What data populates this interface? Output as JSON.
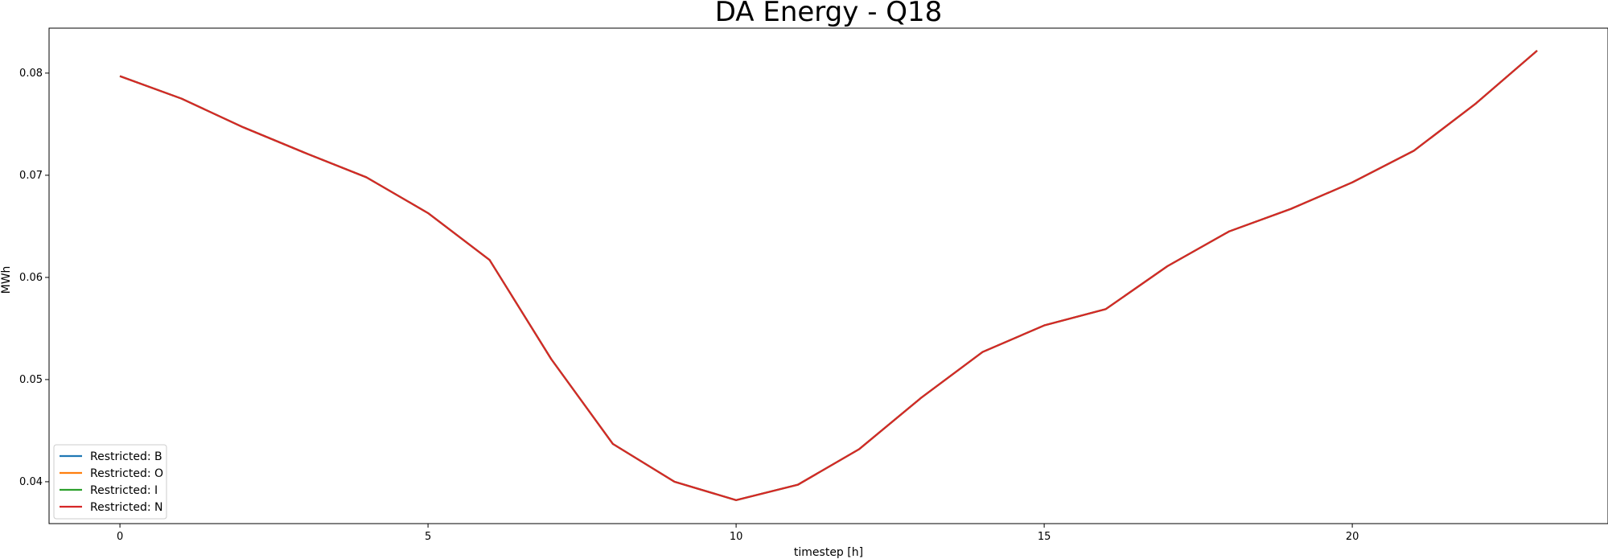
{
  "chart_data": {
    "type": "line",
    "title": "DA Energy - Q18",
    "xlabel": "timestep [h]",
    "ylabel": "MWh",
    "xlim": [
      -1.15,
      24.15
    ],
    "ylim": [
      0.0359,
      0.0844
    ],
    "x_ticks": [
      0,
      5,
      10,
      15,
      20
    ],
    "y_ticks": [
      0.04,
      0.05,
      0.06,
      0.07,
      0.08
    ],
    "y_tick_labels": [
      "0.04",
      "0.05",
      "0.06",
      "0.07",
      "0.08"
    ],
    "grid": false,
    "legend_position": "lower left",
    "x": [
      0,
      1,
      2,
      3,
      4,
      5,
      6,
      7,
      8,
      9,
      10,
      11,
      12,
      13,
      14,
      15,
      16,
      17,
      18,
      19,
      20,
      21,
      22,
      23
    ],
    "series": [
      {
        "name": "Restricted: B",
        "color": "#1f77b4",
        "values": [
          0.0797,
          0.0775,
          0.0747,
          0.0722,
          0.0698,
          0.0663,
          0.0617,
          0.052,
          0.0437,
          0.04,
          0.0382,
          0.0397,
          0.0432,
          0.0482,
          0.0527,
          0.0553,
          0.0569,
          0.0611,
          0.0645,
          0.0667,
          0.0693,
          0.0724,
          0.077,
          0.0822
        ]
      },
      {
        "name": "Restricted: O",
        "color": "#ff7f0e",
        "values": [
          0.0797,
          0.0775,
          0.0747,
          0.0722,
          0.0698,
          0.0663,
          0.0617,
          0.052,
          0.0437,
          0.04,
          0.0382,
          0.0397,
          0.0432,
          0.0482,
          0.0527,
          0.0553,
          0.0569,
          0.0611,
          0.0645,
          0.0667,
          0.0693,
          0.0724,
          0.077,
          0.0822
        ]
      },
      {
        "name": "Restricted: I",
        "color": "#2ca02c",
        "values": [
          0.0797,
          0.0775,
          0.0747,
          0.0722,
          0.0698,
          0.0663,
          0.0617,
          0.052,
          0.0437,
          0.04,
          0.0382,
          0.0397,
          0.0432,
          0.0482,
          0.0527,
          0.0553,
          0.0569,
          0.0611,
          0.0645,
          0.0667,
          0.0693,
          0.0724,
          0.077,
          0.0822
        ]
      },
      {
        "name": "Restricted: N",
        "color": "#d62728",
        "values": [
          0.0797,
          0.0775,
          0.0747,
          0.0722,
          0.0698,
          0.0663,
          0.0617,
          0.052,
          0.0437,
          0.04,
          0.0382,
          0.0397,
          0.0432,
          0.0482,
          0.0527,
          0.0553,
          0.0569,
          0.0611,
          0.0645,
          0.0667,
          0.0693,
          0.0724,
          0.077,
          0.0822
        ]
      }
    ]
  }
}
